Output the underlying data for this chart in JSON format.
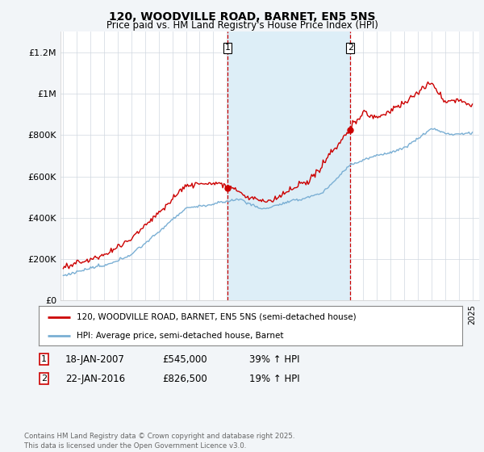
{
  "title": "120, WOODVILLE ROAD, BARNET, EN5 5NS",
  "subtitle": "Price paid vs. HM Land Registry's House Price Index (HPI)",
  "background_color": "#f2f5f8",
  "plot_bg_color": "#ffffff",
  "red_color": "#cc0000",
  "blue_color": "#7aafd4",
  "shade_color": "#ddeef7",
  "vline_color": "#cc0000",
  "sale1_date": 2007.05,
  "sale1_price": 545000,
  "sale2_date": 2016.05,
  "sale2_price": 826500,
  "xmin": 1994.8,
  "xmax": 2025.5,
  "ymin": 0,
  "ymax": 1300000,
  "yticks": [
    0,
    200000,
    400000,
    600000,
    800000,
    1000000,
    1200000
  ],
  "ytick_labels": [
    "£0",
    "£200K",
    "£400K",
    "£600K",
    "£800K",
    "£1M",
    "£1.2M"
  ],
  "legend_line1": "120, WOODVILLE ROAD, BARNET, EN5 5NS (semi-detached house)",
  "legend_line2": "HPI: Average price, semi-detached house, Barnet",
  "footer": "Contains HM Land Registry data © Crown copyright and database right 2025.\nThis data is licensed under the Open Government Licence v3.0."
}
